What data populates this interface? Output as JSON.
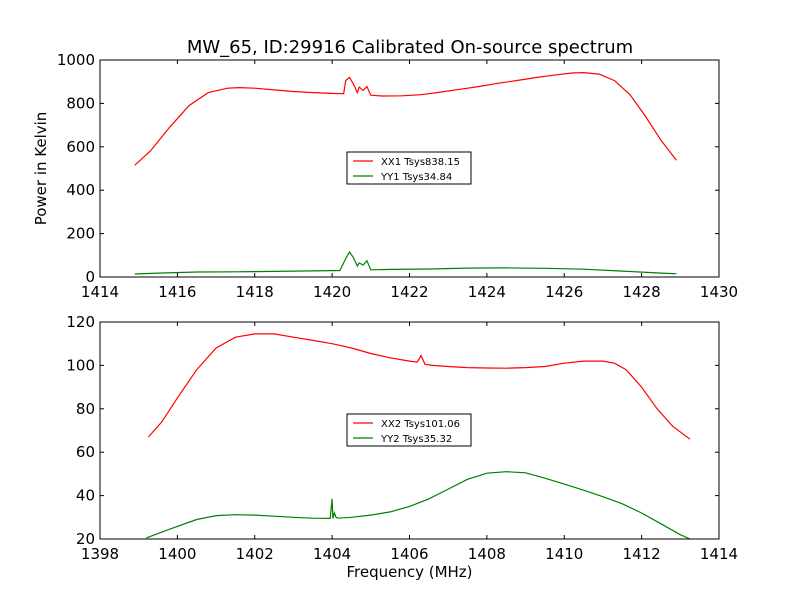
{
  "figure": {
    "title": "MW_65, ID:29916 Calibrated On-source spectrum"
  },
  "chart_data": [
    {
      "type": "line",
      "title": "MW_65, ID:29916 Calibrated On-source spectrum",
      "xlabel": "",
      "ylabel": "Power in Kelvin",
      "xlim": [
        1414,
        1430
      ],
      "ylim": [
        0,
        1000
      ],
      "xticks": [
        1414,
        1416,
        1418,
        1420,
        1422,
        1424,
        1426,
        1428,
        1430
      ],
      "yticks": [
        0,
        200,
        400,
        600,
        800,
        1000
      ],
      "grid": false,
      "legend": "center",
      "series": [
        {
          "name": "XX1 Tsys838.15",
          "color": "#ff0000",
          "x": [
            1414.9,
            1415.3,
            1415.8,
            1416.3,
            1416.8,
            1417.3,
            1417.6,
            1418.0,
            1418.5,
            1419.0,
            1419.5,
            1420.0,
            1420.3,
            1420.35,
            1420.45,
            1420.55,
            1420.65,
            1420.7,
            1420.8,
            1420.9,
            1421.0,
            1421.3,
            1421.8,
            1422.3,
            1422.8,
            1423.3,
            1423.8,
            1424.3,
            1424.8,
            1425.3,
            1425.8,
            1426.2,
            1426.5,
            1426.9,
            1427.3,
            1427.7,
            1428.1,
            1428.5,
            1428.9
          ],
          "y": [
            515,
            580,
            690,
            790,
            850,
            870,
            873,
            870,
            862,
            855,
            850,
            846,
            845,
            905,
            920,
            890,
            850,
            875,
            860,
            878,
            838,
            834,
            835,
            840,
            852,
            865,
            878,
            893,
            906,
            920,
            932,
            940,
            942,
            935,
            905,
            840,
            740,
            630,
            538
          ]
        },
        {
          "name": "YY1 Tsys34.84",
          "color": "#008000",
          "x": [
            1414.9,
            1415.5,
            1416.5,
            1417.5,
            1418.5,
            1419.5,
            1420.2,
            1420.35,
            1420.45,
            1420.55,
            1420.65,
            1420.7,
            1420.8,
            1420.9,
            1421.0,
            1421.5,
            1422.5,
            1423.5,
            1424.5,
            1425.5,
            1426.5,
            1427.5,
            1428.5,
            1428.9
          ],
          "y": [
            14,
            18,
            23,
            24,
            26,
            28,
            30,
            85,
            115,
            90,
            50,
            65,
            55,
            75,
            33,
            35,
            37,
            41,
            42,
            40,
            36,
            27,
            18,
            15
          ]
        }
      ]
    },
    {
      "type": "line",
      "title": "",
      "xlabel": "Frequency (MHz)",
      "ylabel": "",
      "xlim": [
        1398,
        1414
      ],
      "ylim": [
        20,
        120
      ],
      "xticks": [
        1398,
        1400,
        1402,
        1404,
        1406,
        1408,
        1410,
        1412,
        1414
      ],
      "yticks": [
        20,
        40,
        60,
        80,
        100,
        120
      ],
      "grid": false,
      "legend": "center",
      "series": [
        {
          "name": "XX2 Tsys101.06",
          "color": "#ff0000",
          "x": [
            1399.25,
            1399.6,
            1400.0,
            1400.5,
            1401.0,
            1401.5,
            1402.0,
            1402.5,
            1403.0,
            1403.5,
            1404.0,
            1404.5,
            1405.0,
            1405.5,
            1406.0,
            1406.2,
            1406.3,
            1406.4,
            1406.6,
            1407.0,
            1407.5,
            1408.0,
            1408.5,
            1409.0,
            1409.5,
            1410.0,
            1410.5,
            1411.0,
            1411.3,
            1411.6,
            1412.0,
            1412.4,
            1412.8,
            1413.25
          ],
          "y": [
            67,
            74,
            85,
            98,
            108,
            113,
            114.5,
            114.5,
            113,
            111.5,
            110,
            108,
            105.5,
            103.5,
            102,
            101.5,
            104.5,
            100.5,
            100,
            99.5,
            99,
            98.8,
            98.7,
            99,
            99.5,
            101,
            102,
            102,
            101,
            98,
            90,
            80,
            72,
            66
          ]
        },
        {
          "name": "YY2 Tsys35.32",
          "color": "#008000",
          "x": [
            1399.2,
            1399.8,
            1400.5,
            1401.0,
            1401.5,
            1402.0,
            1402.5,
            1403.0,
            1403.5,
            1403.95,
            1404.0,
            1404.02,
            1404.06,
            1404.1,
            1404.15,
            1404.5,
            1405.0,
            1405.5,
            1406.0,
            1406.5,
            1407.0,
            1407.5,
            1408.0,
            1408.5,
            1409.0,
            1409.5,
            1410.0,
            1410.5,
            1411.0,
            1411.5,
            1412.0,
            1412.5,
            1413.0,
            1413.25
          ],
          "y": [
            20.5,
            24.5,
            29,
            30.8,
            31.2,
            31,
            30.5,
            30,
            29.6,
            29.5,
            38.5,
            29.5,
            32,
            30,
            29.6,
            30,
            31,
            32.5,
            35,
            38.5,
            43,
            47.5,
            50.3,
            51,
            50.5,
            48,
            45.3,
            42.5,
            39.5,
            36.2,
            32,
            27,
            22,
            20
          ]
        }
      ]
    }
  ]
}
